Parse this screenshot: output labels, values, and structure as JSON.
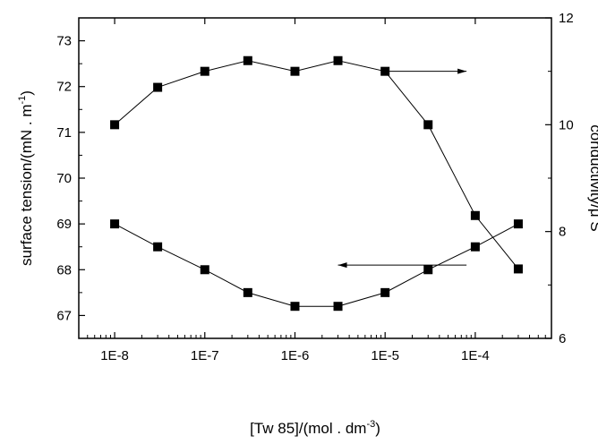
{
  "chart_data": {
    "type": "scatter",
    "title": "",
    "x_scale": "log",
    "xlim": [
      4e-09,
      0.0007
    ],
    "x_ticks": [
      1e-08,
      1e-07,
      1e-06,
      1e-05,
      0.0001
    ],
    "x_tick_labels": [
      "1E-8",
      "1E-7",
      "1E-6",
      "1E-5",
      "1E-4"
    ],
    "xlabel": {
      "prefix": "[Tw 85]/(mol . dm",
      "sup": "-3",
      "suffix": ")"
    },
    "ylabel_left": {
      "prefix": "surface tension/(mN . m",
      "sup": "-1",
      "suffix": ")"
    },
    "ylabel_right": {
      "prefix": "conductivity/",
      "mu": "μ",
      "suffix": " S"
    },
    "ylim_left": [
      66.5,
      73.5
    ],
    "y_ticks_left": [
      67,
      68,
      69,
      70,
      71,
      72,
      73
    ],
    "ylim_right": [
      6,
      12
    ],
    "y_ticks_right": [
      6,
      8,
      10,
      12
    ],
    "grid": false,
    "series": [
      {
        "axis": "left",
        "marker": "square",
        "color": "#000000",
        "x": [
          1e-08,
          3e-08,
          1e-07,
          3e-07,
          1e-06,
          3e-06,
          1e-05,
          3e-05,
          0.0001,
          0.0003
        ],
        "y": [
          69.0,
          68.5,
          68.0,
          67.5,
          67.2,
          67.2,
          67.5,
          68.0,
          68.5,
          69.0
        ],
        "arrow": {
          "direction": "left",
          "x_from": 8e-05,
          "x_to": 3e-06,
          "y": 68.1
        }
      },
      {
        "axis": "right",
        "marker": "square",
        "color": "#000000",
        "x": [
          1e-08,
          3e-08,
          1e-07,
          3e-07,
          1e-06,
          3e-06,
          1e-05,
          3e-05,
          0.0001,
          0.0003
        ],
        "y": [
          10.0,
          10.7,
          11.0,
          11.2,
          11.0,
          11.2,
          11.0,
          10.0,
          8.3,
          7.3
        ],
        "arrow": {
          "direction": "right",
          "x_from": 1e-05,
          "x_to": 8e-05,
          "y": 11.0
        }
      }
    ]
  }
}
